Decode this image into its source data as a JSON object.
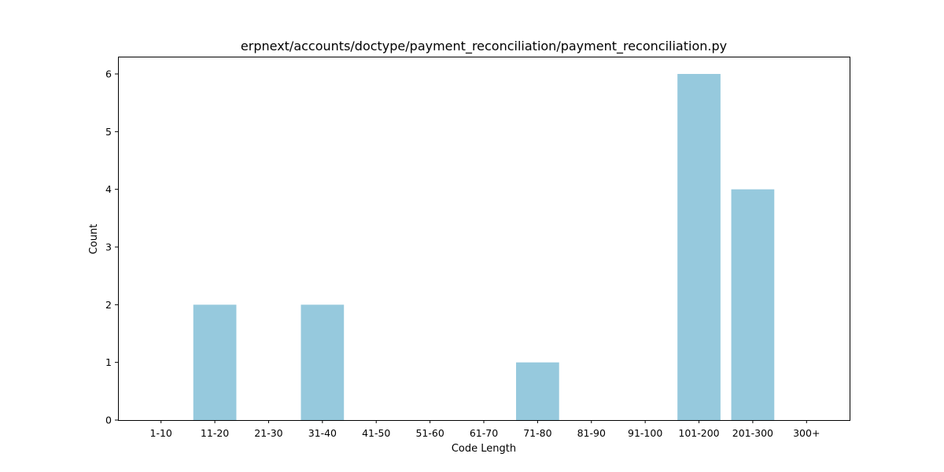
{
  "chart_data": {
    "type": "bar",
    "title": "erpnext/accounts/doctype/payment_reconciliation/payment_reconciliation.py",
    "xlabel": "Code Length",
    "ylabel": "Count",
    "categories": [
      "1-10",
      "11-20",
      "21-30",
      "31-40",
      "41-50",
      "51-60",
      "61-70",
      "71-80",
      "81-90",
      "91-100",
      "101-200",
      "201-300",
      "300+"
    ],
    "values": [
      0,
      2,
      0,
      2,
      0,
      0,
      0,
      1,
      0,
      0,
      6,
      4,
      0
    ],
    "ylim": [
      0,
      6.3
    ],
    "yticks": [
      0,
      1,
      2,
      3,
      4,
      5,
      6
    ],
    "bar_color": "#96c9dd",
    "grid": false,
    "legend": "none"
  }
}
